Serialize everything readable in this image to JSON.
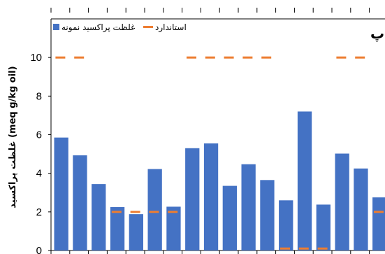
{
  "chart_data": {
    "type": "bar",
    "panel_label": "پ",
    "ylabel": "غلظت پراکسید (meq g/kg oil)",
    "ylim": [
      0,
      12
    ],
    "yticks": [
      0,
      2,
      4,
      6,
      8,
      10
    ],
    "categories": [
      "",
      "",
      "",
      "",
      "",
      "",
      "",
      "",
      "",
      "",
      "",
      "",
      "",
      "",
      "",
      "",
      "",
      ""
    ],
    "series": [
      {
        "name": "غلظت پراکسید نمونه",
        "color": "#4472C4",
        "values": [
          5.85,
          4.93,
          3.44,
          2.25,
          1.88,
          4.22,
          2.27,
          5.3,
          5.55,
          3.35,
          4.47,
          3.65,
          2.6,
          7.2,
          2.38,
          5.02,
          4.25,
          2.75
        ]
      },
      {
        "name": "استاندارد",
        "color": "#ED7D31",
        "values": [
          10,
          10,
          null,
          2,
          2,
          2,
          2,
          10,
          10,
          10,
          10,
          10,
          0.1,
          0.1,
          0.1,
          10,
          10,
          2
        ]
      }
    ],
    "legend_position": "top-right",
    "grid": false
  }
}
